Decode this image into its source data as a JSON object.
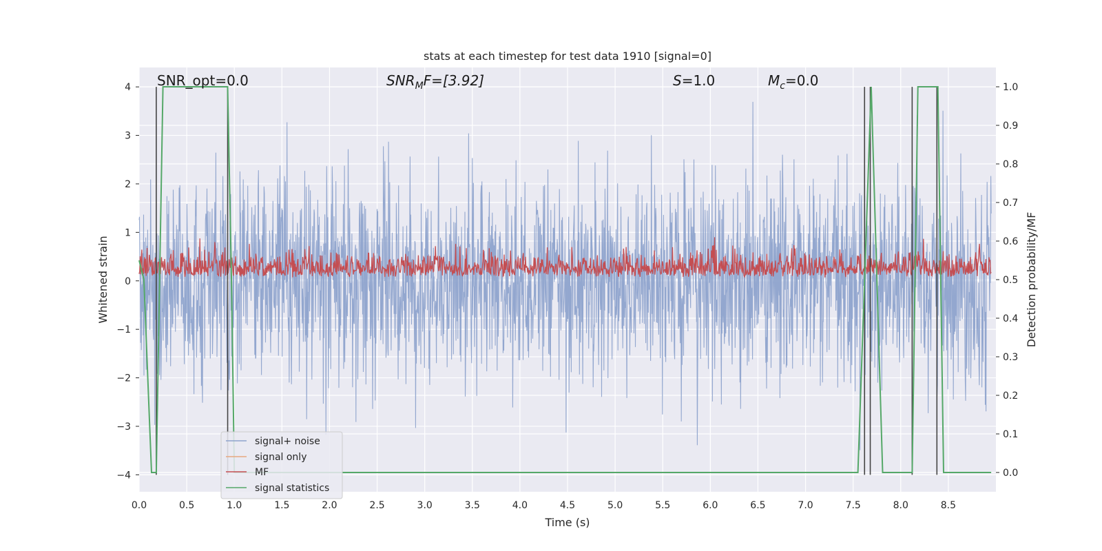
{
  "chart_data": {
    "type": "line",
    "title": "stats at each timestep for test data 1910 [signal=0]",
    "xlabel": "Time (s)",
    "ylabel": "Whitened strain",
    "y2label": "Detection probability/MF",
    "xlim": [
      0.0,
      9.0
    ],
    "ylim": [
      -4.35,
      4.4
    ],
    "y2lim": [
      -0.05,
      1.05
    ],
    "xticks": [
      "0.0",
      "0.5",
      "1.0",
      "1.5",
      "2.0",
      "2.5",
      "3.0",
      "3.5",
      "4.0",
      "4.5",
      "5.0",
      "5.5",
      "6.0",
      "6.5",
      "7.0",
      "7.5",
      "8.0",
      "8.5"
    ],
    "yticks": [
      "4",
      "3",
      "2",
      "1",
      "0",
      "−1",
      "−2",
      "−3",
      "−4"
    ],
    "y2ticks": [
      "1.0",
      "0.9",
      "0.8",
      "0.7",
      "0.6",
      "0.5",
      "0.4",
      "0.3",
      "0.2",
      "0.1",
      "0.0"
    ],
    "grid": true,
    "legend_position": "lower-left",
    "annotations": {
      "snr_opt": "SNR_opt=0.0",
      "snr_mf_prefix": "SNR",
      "snr_mf_sub": "M",
      "snr_mf_suffix": "F=[3.92]",
      "s_var": "S",
      "s_value": "=1.0",
      "mc_var": "M",
      "mc_sub": "c",
      "mc_value": "=0.0"
    },
    "series": [
      {
        "name": "signal+ noise",
        "color": "#8ea3cc",
        "description_values": {
          "y_range": [
            -4.0,
            4.0
          ],
          "typical_amplitude": 2.5
        }
      },
      {
        "name": "signal only",
        "color": "#e8a77f",
        "values": []
      },
      {
        "name": "MF",
        "color": "#c44e52",
        "description_values": {
          "axis": "right",
          "y_range": [
            0.5,
            0.6
          ]
        }
      },
      {
        "name": "signal statistics",
        "color": "#55a868",
        "axis": "right",
        "x": [
          0.0,
          0.05,
          0.13,
          0.18,
          0.25,
          0.3,
          0.5,
          0.9,
          0.93,
          0.97,
          1.0,
          1.5,
          2.0,
          3.0,
          4.0,
          5.0,
          6.0,
          7.0,
          7.55,
          7.62,
          7.69,
          7.75,
          7.81,
          7.9,
          8.0,
          8.12,
          8.18,
          8.25,
          8.3,
          8.35,
          8.39,
          8.45,
          8.6,
          8.95
        ],
        "values": [
          0.55,
          0.5,
          0.0,
          0.0,
          1.0,
          1.0,
          1.0,
          1.0,
          1.0,
          0.5,
          0.0,
          0.0,
          0.0,
          0.0,
          0.0,
          0.0,
          0.0,
          0.0,
          0.0,
          0.5,
          1.0,
          0.5,
          0.0,
          0.0,
          0.0,
          0.0,
          1.0,
          1.0,
          1.0,
          1.0,
          1.0,
          0.0,
          0.0,
          0.0
        ]
      }
    ],
    "vertical_lines_x": [
      0.18,
      0.93,
      7.62,
      7.68,
      8.12,
      8.38
    ]
  }
}
